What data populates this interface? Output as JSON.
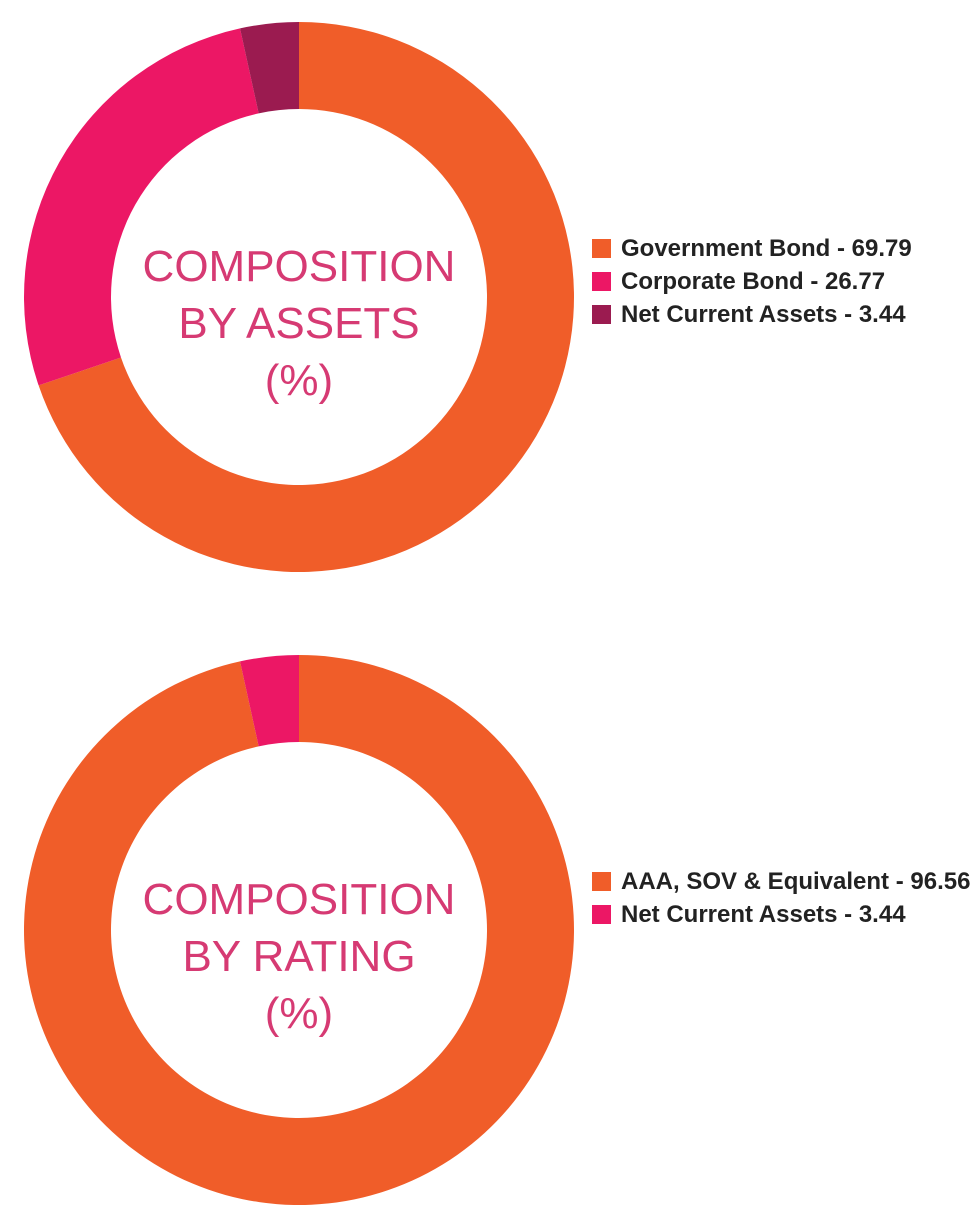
{
  "colors": {
    "orange": "#f05d29",
    "pink": "#ec1765",
    "maroon": "#9b1b50",
    "title": "#d63a73"
  },
  "chart_data": [
    {
      "type": "pie",
      "donut": true,
      "center_title_lines": [
        "COMPOSITION",
        "BY ASSETS",
        "(%)"
      ],
      "categories": [
        "Government Bond",
        "Corporate Bond",
        "Net Current Assets"
      ],
      "values": [
        69.79,
        26.77,
        3.44
      ],
      "legend_labels": [
        "Government Bond - 69.79",
        "Corporate Bond - 26.77",
        "Net Current Assets - 3.44"
      ],
      "colors": [
        "#f05d29",
        "#ec1765",
        "#9b1b50"
      ],
      "legend_position": "right"
    },
    {
      "type": "pie",
      "donut": true,
      "center_title_lines": [
        "COMPOSITION",
        "BY RATING",
        "(%)"
      ],
      "categories": [
        "AAA, SOV & Equivalent",
        "Net Current Assets"
      ],
      "values": [
        96.56,
        3.44
      ],
      "legend_labels": [
        "AAA, SOV & Equivalent - 96.56",
        "Net Current Assets - 3.44"
      ],
      "colors": [
        "#f05d29",
        "#ec1765"
      ],
      "legend_position": "right"
    }
  ]
}
